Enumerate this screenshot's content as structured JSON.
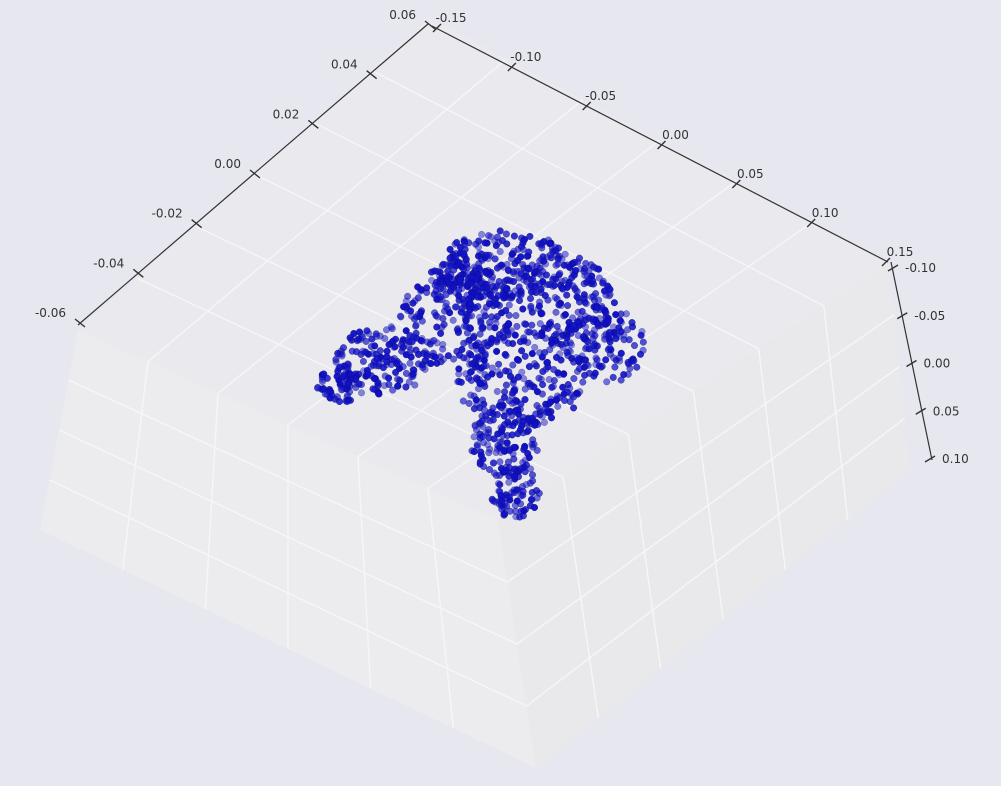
{
  "chart_data": {
    "type": "scatter",
    "projection": "3d",
    "title": "",
    "xlabel": "",
    "ylabel": "",
    "zlabel": "",
    "axes": {
      "x": {
        "ticks": [
          "-0.15",
          "-0.10",
          "-0.05",
          "0.00",
          "0.05",
          "0.10",
          "0.15"
        ],
        "range": [
          -0.15,
          0.15
        ]
      },
      "y": {
        "ticks": [
          "-0.06",
          "-0.04",
          "-0.02",
          "0.00",
          "0.02",
          "0.04",
          "0.06"
        ],
        "range": [
          -0.06,
          0.06
        ]
      },
      "z": {
        "ticks": [
          "-0.10",
          "-0.05",
          "0.00",
          "0.05",
          "0.10"
        ],
        "range": [
          -0.1,
          0.1
        ]
      }
    },
    "grid": true,
    "series": [
      {
        "marker_color": "#1010c8",
        "points": [
          [
            -0.02,
            0.005,
            0.02
          ],
          [
            -0.01,
            0.012,
            0.03
          ],
          [
            0.0,
            0.018,
            0.04
          ],
          [
            0.01,
            0.02,
            0.03
          ],
          [
            0.02,
            0.015,
            0.02
          ],
          [
            0.03,
            0.008,
            0.01
          ],
          [
            0.04,
            0.0,
            0.0
          ],
          [
            -0.03,
            -0.005,
            0.01
          ],
          [
            -0.05,
            -0.015,
            -0.01
          ],
          [
            -0.07,
            -0.025,
            -0.02
          ],
          [
            -0.06,
            -0.02,
            -0.03
          ],
          [
            -0.04,
            -0.01,
            -0.02
          ],
          [
            0.0,
            -0.01,
            -0.04
          ],
          [
            0.01,
            -0.02,
            -0.05
          ],
          [
            0.0,
            -0.03,
            -0.06
          ],
          [
            -0.01,
            -0.035,
            -0.07
          ],
          [
            0.02,
            0.0,
            0.05
          ],
          [
            0.03,
            0.005,
            0.04
          ],
          [
            -0.01,
            0.0,
            0.0
          ],
          [
            0.01,
            0.005,
            -0.01
          ]
        ]
      }
    ],
    "background": "#e6e7ef",
    "pane_color": "#eaeaee",
    "grid_color": "#ffffff"
  }
}
